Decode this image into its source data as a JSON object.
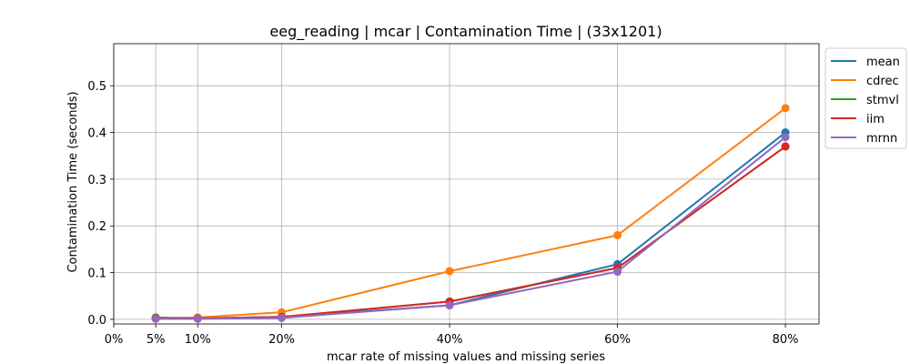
{
  "chart_data": {
    "type": "line",
    "title": "eeg_reading | mcar | Contamination Time | (33x1201)",
    "xlabel": "mcar rate of missing values and missing series",
    "ylabel": "Contamination Time (seconds)",
    "x": [
      0.05,
      0.1,
      0.2,
      0.4,
      0.6,
      0.8
    ],
    "xticks": [
      0,
      0.05,
      0.1,
      0.2,
      0.4,
      0.6,
      0.8
    ],
    "xtick_labels": [
      "0%",
      "5%",
      "10%",
      "20%",
      "40%",
      "60%",
      "80%"
    ],
    "xlim": [
      0,
      0.84
    ],
    "yticks": [
      0.0,
      0.1,
      0.2,
      0.3,
      0.4,
      0.5
    ],
    "ytick_labels": [
      "0.0",
      "0.1",
      "0.2",
      "0.3",
      "0.4",
      "0.5"
    ],
    "ylim": [
      -0.01,
      0.59
    ],
    "grid": true,
    "legend_position": "outside upper right",
    "series": [
      {
        "name": "mean",
        "color": "#1f77b4",
        "values": [
          0.002,
          0.002,
          0.005,
          0.03,
          0.118,
          0.4
        ]
      },
      {
        "name": "cdrec",
        "color": "#ff7f0e",
        "values": [
          0.002,
          0.004,
          0.015,
          0.103,
          0.18,
          0.452
        ]
      },
      {
        "name": "stmvl",
        "color": "#2ca02c",
        "values": [
          0.004,
          0.002,
          0.005,
          0.038,
          0.11,
          0.37
        ]
      },
      {
        "name": "iim",
        "color": "#d62728",
        "values": [
          0.002,
          0.002,
          0.005,
          0.038,
          0.11,
          0.37
        ]
      },
      {
        "name": "mrnn",
        "color": "#9467bd",
        "values": [
          0.001,
          0.001,
          0.003,
          0.03,
          0.102,
          0.39
        ]
      }
    ]
  }
}
